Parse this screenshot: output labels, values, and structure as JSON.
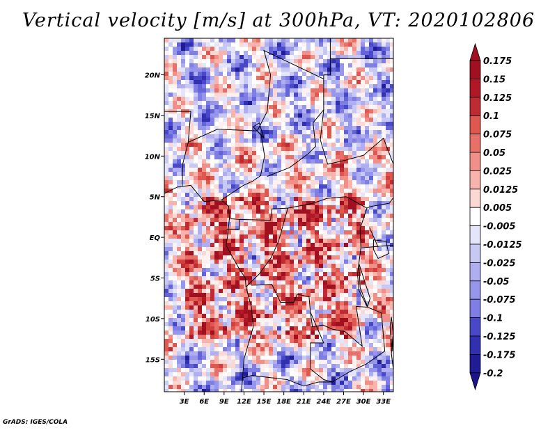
{
  "title": "Vertical velocity [m/s] at 300hPa, VT: 2020102806",
  "credit": "GrADS: IGES/COLA",
  "lat_ticks": [
    "20N",
    "15N",
    "10N",
    "5N",
    "EQ",
    "5S",
    "10S",
    "15S"
  ],
  "lon_ticks": [
    "3E",
    "6E",
    "9E",
    "12E",
    "15E",
    "18E",
    "21E",
    "24E",
    "27E",
    "30E",
    "33E"
  ],
  "colorbar": {
    "labels": [
      "0.175",
      "0.15",
      "0.125",
      "0.1",
      "0.075",
      "0.05",
      "0.025",
      "0.0125",
      "0.005",
      "-0.005",
      "-0.0125",
      "-0.025",
      "-0.05",
      "-0.075",
      "-0.1",
      "-0.125",
      "-0.175",
      "-0.2"
    ],
    "colors": [
      "#a01020",
      "#b01828",
      "#c02a32",
      "#d0403c",
      "#de5850",
      "#e87068",
      "#f09088",
      "#f8b4ac",
      "#fcd8d4",
      "#fdf2f0",
      "#ffffff",
      "#e4e4fa",
      "#c8c8f4",
      "#aeaef0",
      "#9696ea",
      "#7e7ee4",
      "#6464d8",
      "#4848c8",
      "#3030b0",
      "#201c96"
    ],
    "under_color": "#1c1488",
    "over_color": "#a01020"
  },
  "field": {
    "field_type": "vertical_velocity",
    "level": "300hPa",
    "valid_time": "2020102806",
    "lon_range": [
      0,
      34.5
    ],
    "lat_range": [
      -19,
      24.5
    ]
  }
}
